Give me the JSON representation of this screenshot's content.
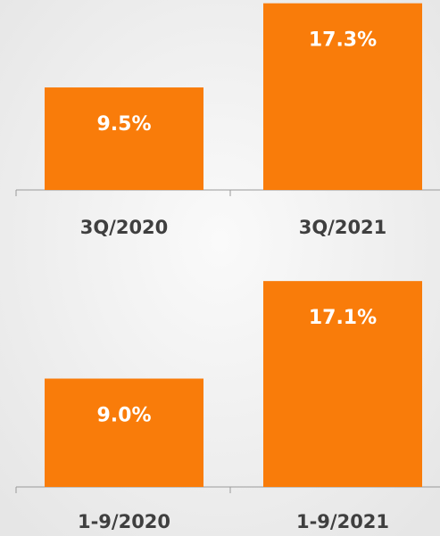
{
  "chart_data": [
    {
      "type": "bar",
      "categories": [
        "3Q/2020",
        "3Q/2021"
      ],
      "values": [
        9.5,
        17.3
      ],
      "value_labels": [
        "9.5%",
        "17.3%"
      ],
      "color": "#f97c0a"
    },
    {
      "type": "bar",
      "categories": [
        "1-9/2020",
        "1-9/2021"
      ],
      "values": [
        9.0,
        17.1
      ],
      "value_labels": [
        "9.0%",
        "17.1%"
      ],
      "color": "#f97c0a"
    }
  ]
}
